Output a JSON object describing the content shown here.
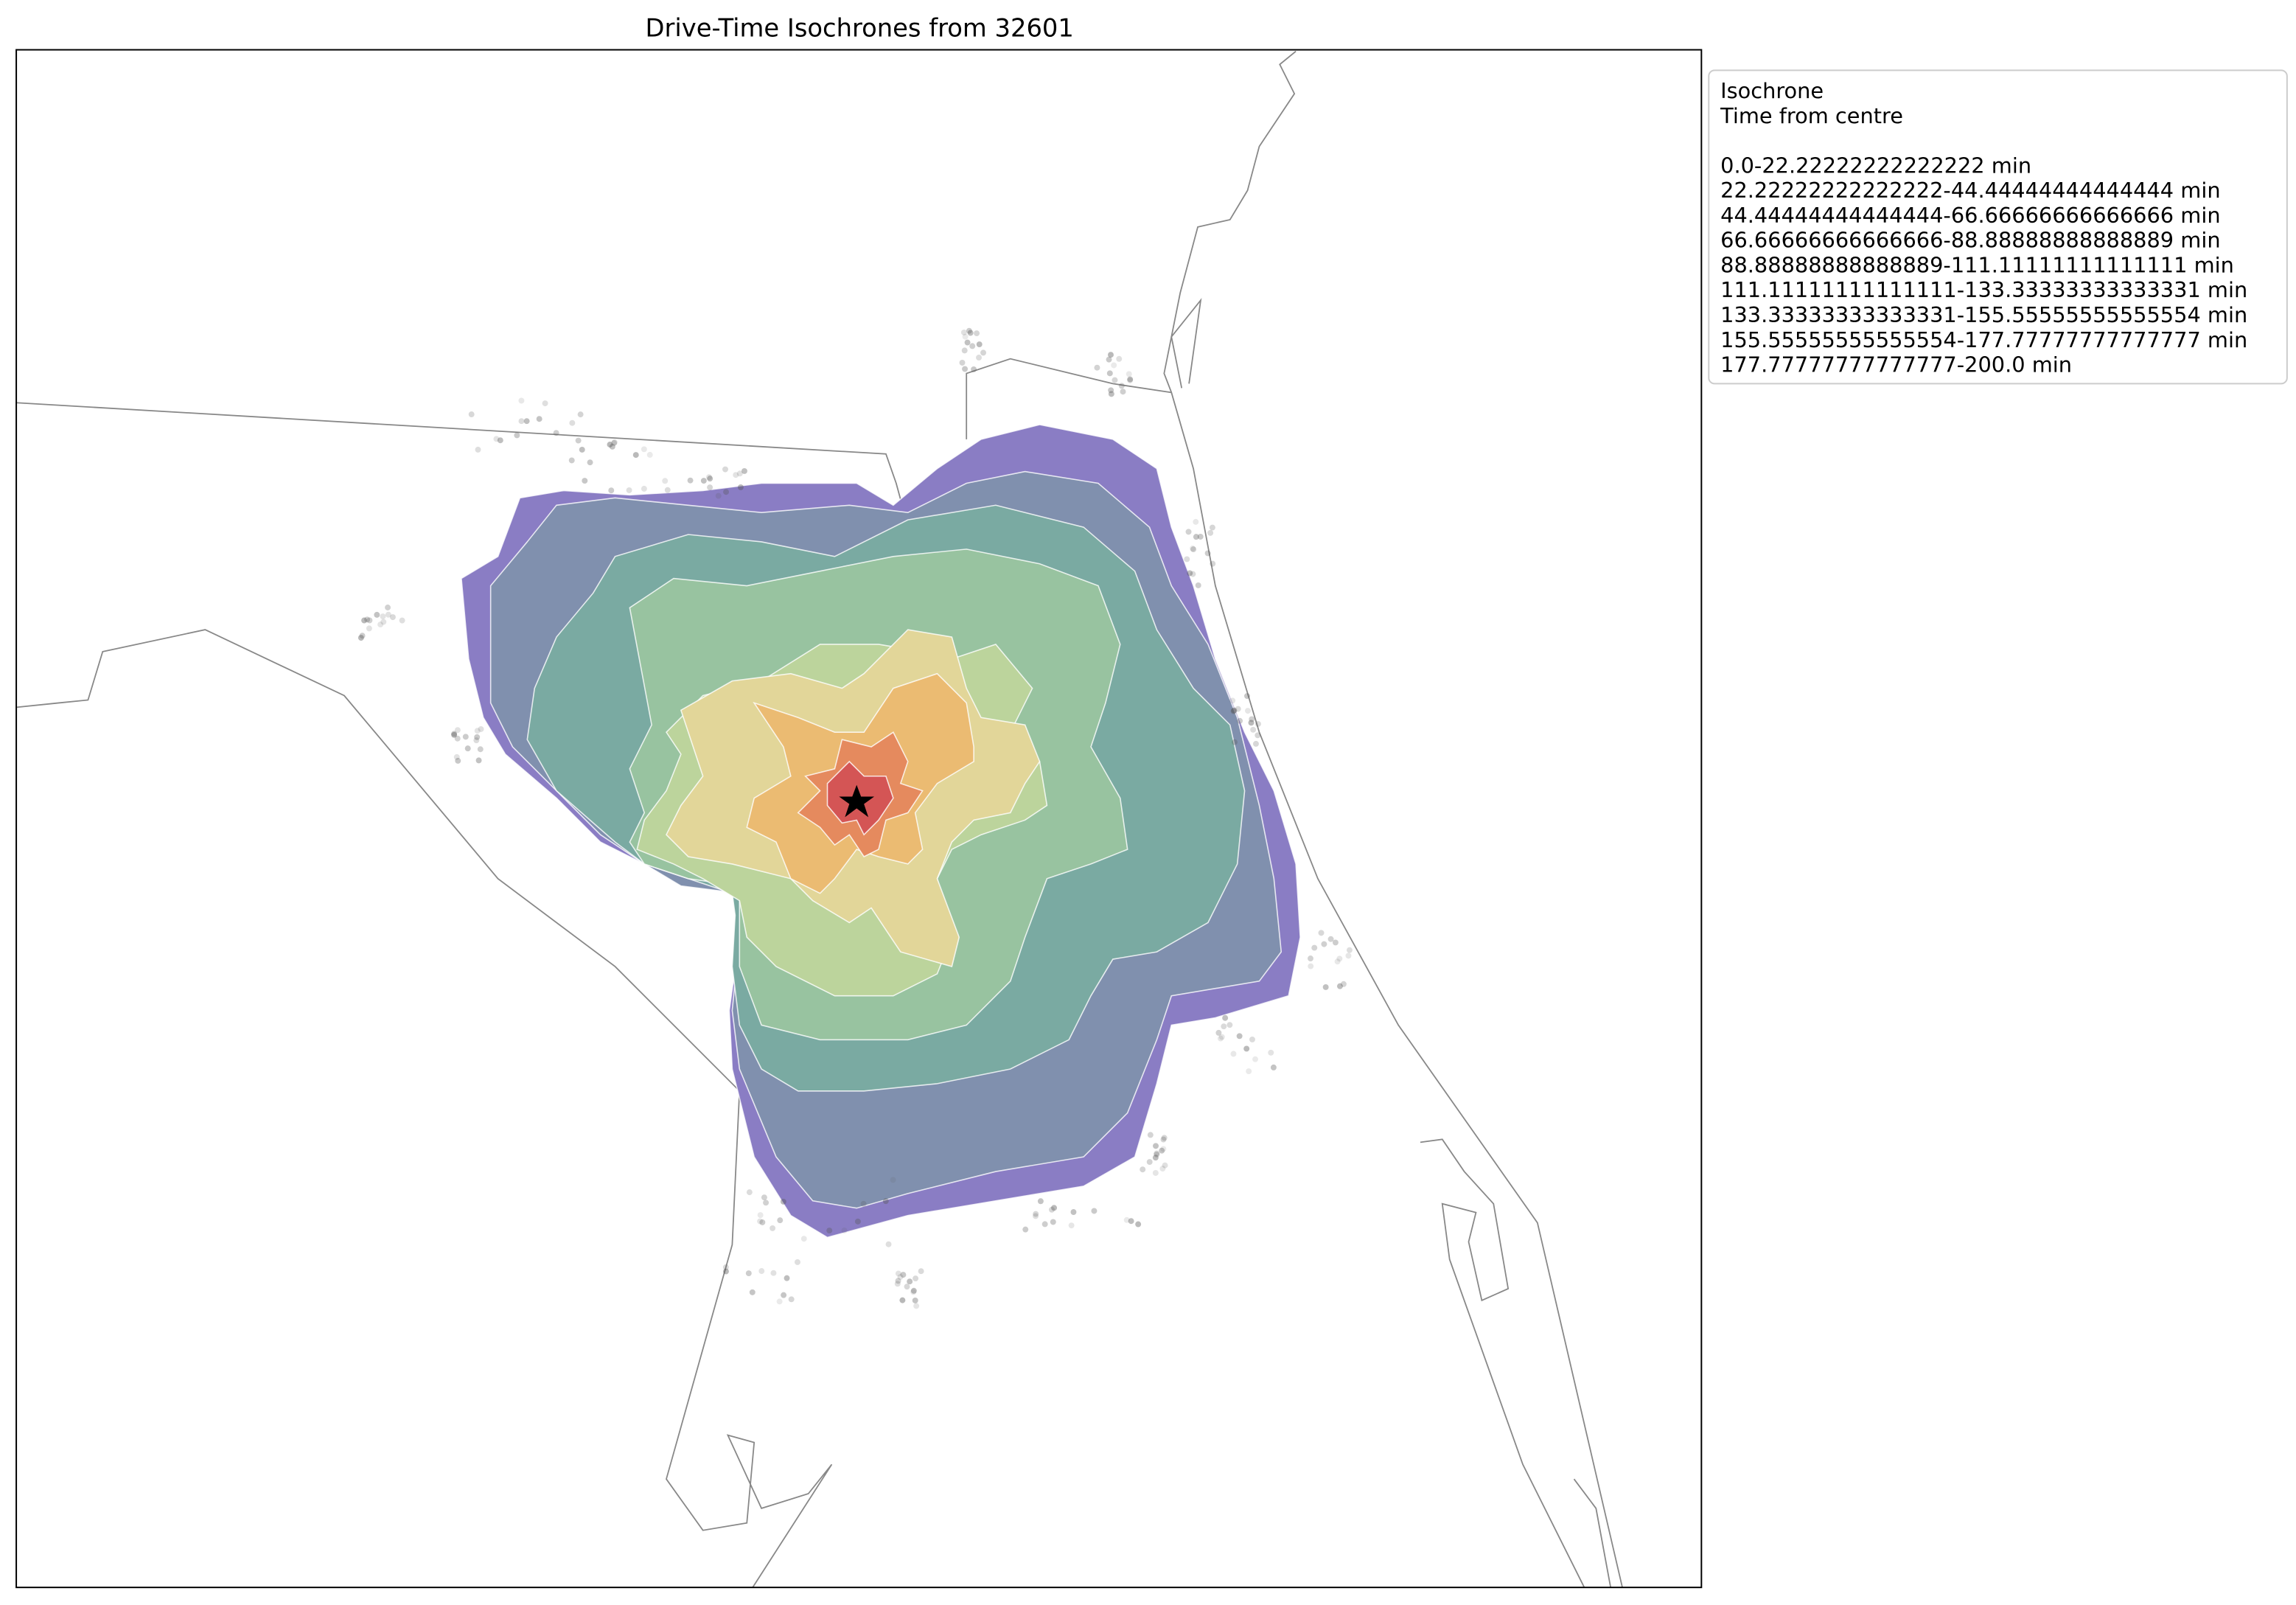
{
  "title": "Drive-Time Isochrones from 32601",
  "legend": {
    "title": [
      "Isochrone",
      "Time from centre"
    ],
    "entries": [
      "0.0-22.22222222222222 min",
      "22.22222222222222-44.44444444444444 min",
      "44.44444444444444-66.66666666666666 min",
      "66.66666666666666-88.88888888888889 min",
      "88.88888888888889-111.11111111111111 min",
      "111.11111111111111-133.33333333333331 min",
      "133.33333333333331-155.55555555555554 min",
      "155.55555555555554-177.77777777777777 min",
      "177.77777777777777-200.0 min"
    ]
  }
}
